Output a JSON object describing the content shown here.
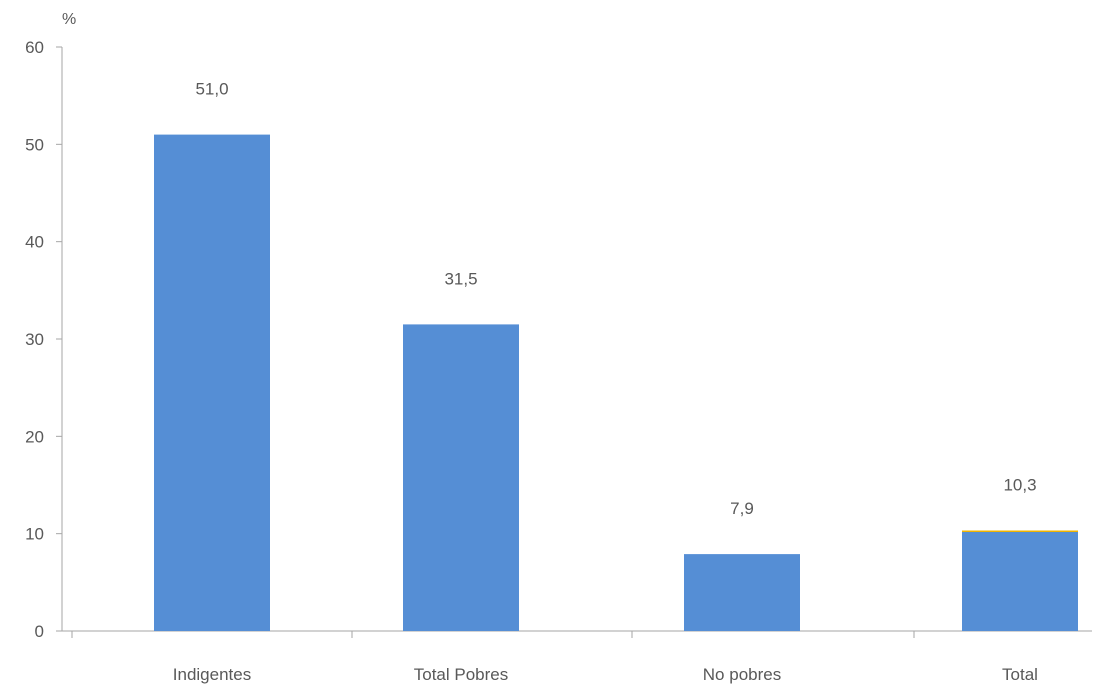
{
  "chart_data": {
    "type": "bar",
    "unit_label": "%",
    "categories": [
      "Indigentes",
      "Total Pobres",
      "No pobres",
      "Total"
    ],
    "values": [
      51.0,
      31.5,
      7.9,
      10.3
    ],
    "value_labels": [
      "51,0",
      "31,5",
      "7,9",
      "10,3"
    ],
    "ylim": [
      0,
      60
    ],
    "yticks": [
      0,
      10,
      20,
      30,
      40,
      50,
      60
    ],
    "grid": false,
    "legend": "none",
    "bar_color": "#558ed5",
    "accent_color": "#f0b400"
  }
}
